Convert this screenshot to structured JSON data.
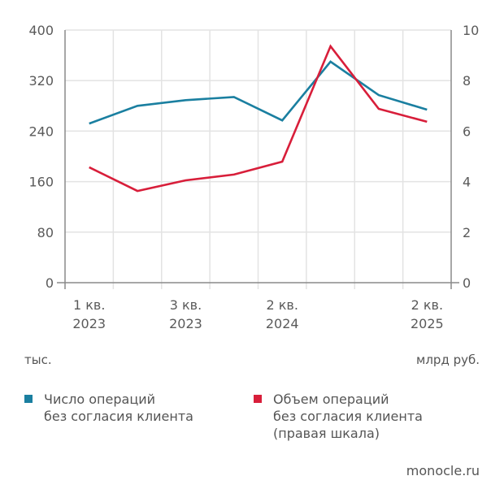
{
  "chart_data": {
    "type": "line",
    "categories": [
      "1 кв. 2023",
      "",
      "3 кв. 2023",
      "",
      "2 кв. 2024",
      "",
      "",
      "2 кв. 2025"
    ],
    "x_tick_labels": [
      {
        "line1": "1 кв.",
        "line2": "2023",
        "index": 0
      },
      {
        "line1": "3 кв.",
        "line2": "2023",
        "index": 2
      },
      {
        "line1": "2 кв.",
        "line2": "2024",
        "index": 4
      },
      {
        "line1": "2 кв.",
        "line2": "2025",
        "index": 7
      }
    ],
    "series": [
      {
        "name": "Число операций без согласия клиента",
        "axis": "left",
        "color": "#1a7fa0",
        "values": [
          252,
          280,
          289,
          294,
          257,
          350,
          297,
          274
        ]
      },
      {
        "name": "Объем операций без согласия клиента (правая шкала)",
        "axis": "right",
        "color": "#d81e3a",
        "values": [
          4.57,
          3.63,
          4.05,
          4.28,
          4.79,
          9.36,
          6.88,
          6.37
        ]
      }
    ],
    "ylim_left": [
      0,
      400
    ],
    "yticks_left": [
      "0",
      "80",
      "160",
      "240",
      "320",
      "400"
    ],
    "ylim_right": [
      0,
      10
    ],
    "yticks_right": [
      "0",
      "2",
      "4",
      "6",
      "8",
      "10"
    ],
    "ylabel_left": "тыс.",
    "ylabel_right": "млрд руб.",
    "grid": true,
    "legend_position": "bottom"
  },
  "legend": [
    {
      "line1": "Число операций",
      "line2": "без согласия клиента",
      "line3": "",
      "color": "#1a7fa0"
    },
    {
      "line1": "Объем операций",
      "line2": "без согласия клиента",
      "line3": "(правая шкала)",
      "color": "#d81e3a"
    }
  ],
  "source": "monocle.ru"
}
